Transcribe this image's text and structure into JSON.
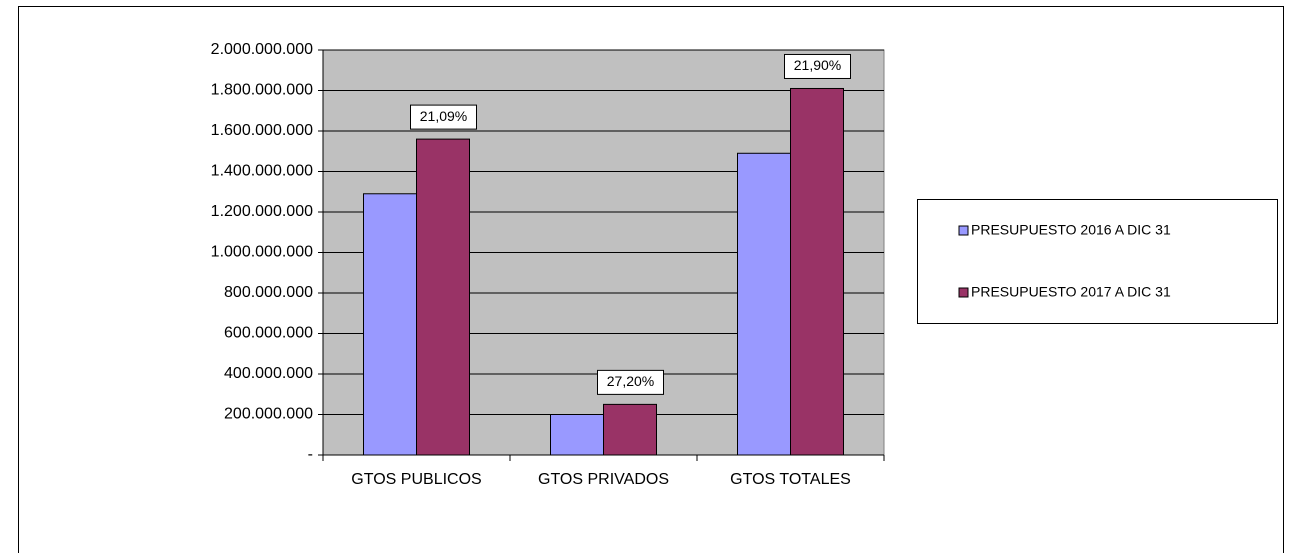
{
  "chart_data": {
    "type": "bar",
    "categories": [
      "GTOS PUBLICOS",
      "GTOS PRIVADOS",
      "GTOS TOTALES"
    ],
    "series": [
      {
        "name": "PRESUPUESTO 2016 A DIC  31",
        "color": "#9999ff",
        "values": [
          1290000000,
          200000000,
          1490000000
        ]
      },
      {
        "name": "PRESUPUESTO 2017 A DIC 31",
        "color": "#993366",
        "values": [
          1560000000,
          250000000,
          1810000000
        ]
      }
    ],
    "annotations": [
      "21,09%",
      "27,20%",
      "21,90%"
    ],
    "ylim": [
      0,
      2000000000
    ],
    "yticks": [
      {
        "value": 0,
        "label": "-"
      },
      {
        "value": 200000000,
        "label": "200.000.000"
      },
      {
        "value": 400000000,
        "label": "400.000.000"
      },
      {
        "value": 600000000,
        "label": "600.000.000"
      },
      {
        "value": 800000000,
        "label": "800.000.000"
      },
      {
        "value": 1000000000,
        "label": "1.000.000.000"
      },
      {
        "value": 1200000000,
        "label": "1.200.000.000"
      },
      {
        "value": 1400000000,
        "label": "1.400.000.000"
      },
      {
        "value": 1600000000,
        "label": "1.600.000.000"
      },
      {
        "value": 1800000000,
        "label": "1.800.000.000"
      },
      {
        "value": 2000000000,
        "label": "2.000.000.000"
      }
    ],
    "grid": true,
    "plot_background": "#c0c0c0",
    "legend": "right"
  }
}
